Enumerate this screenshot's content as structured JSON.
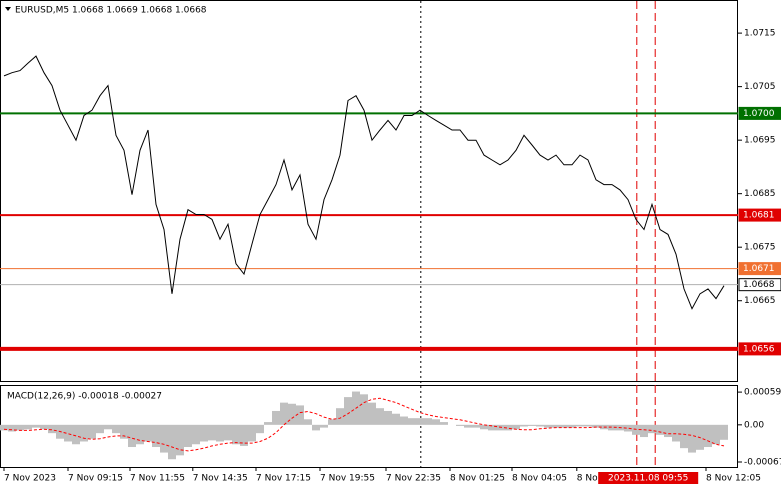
{
  "chart_data": [
    {
      "type": "line",
      "title": "EURUSD,M5 1.0668 1.0669 1.0668 1.0668",
      "color": "#000000",
      "xlim": [
        -0.5,
        91.75
      ],
      "ylim": [
        1.065,
        1.0721
      ],
      "yticks": [
        1.0715,
        1.0705,
        1.0695,
        1.0685,
        1.0675,
        1.0665
      ],
      "xticks": [
        {
          "value": 0,
          "label": "7 Nov 2023"
        },
        {
          "value": 8,
          "label": "7 Nov 09:15"
        },
        {
          "value": 15.75,
          "label": "7 Nov 11:55"
        },
        {
          "value": 23.6,
          "label": "7 Nov 14:35"
        },
        {
          "value": 31.5,
          "label": "7 Nov 17:15"
        },
        {
          "value": 39.5,
          "label": "7 Nov 19:55"
        },
        {
          "value": 47.75,
          "label": "7 Nov 22:35"
        },
        {
          "value": 55.75,
          "label": "8 Nov 01:25"
        },
        {
          "value": 63.5,
          "label": "8 Nov 04:05"
        },
        {
          "value": 71.6,
          "label": "8 No"
        },
        {
          "value": 87.75,
          "label": "8 Nov 12:05"
        }
      ],
      "levels": [
        {
          "value": 1.07,
          "label": "1.0700",
          "color": "#007000",
          "width": 2
        },
        {
          "value": 1.0681,
          "color": "#e00000",
          "width": 2
        },
        {
          "value": 1.0671,
          "color": "#f07030",
          "width": 1
        },
        {
          "value": 1.0668,
          "color": "#b0b0b0",
          "width": 1
        },
        {
          "value": 1.0656,
          "color": "#e00000",
          "width": 4
        }
      ],
      "vlines": [
        {
          "value": 52.1,
          "color": "#000000",
          "dash": "2,3"
        },
        {
          "value": 79.1,
          "color": "#e00000",
          "dash": "8,4"
        },
        {
          "value": 81.4,
          "color": "#e00000",
          "dash": "8,4"
        }
      ],
      "cursor_label": {
        "value": 81.4,
        "label": "2023.11.08 09:55"
      },
      "values": [
        1.0707,
        1.07076,
        1.0708,
        1.07094,
        1.07107,
        1.07076,
        1.07052,
        1.07006,
        1.06978,
        1.0695,
        1.06996,
        1.07006,
        1.07033,
        1.07052,
        1.06959,
        1.06931,
        1.06848,
        1.06931,
        1.06969,
        1.0683,
        1.06783,
        1.06663,
        1.06765,
        1.0682,
        1.06811,
        1.06811,
        1.06802,
        1.06765,
        1.06793,
        1.06719,
        1.067,
        1.06756,
        1.06811,
        1.06839,
        1.06867,
        1.06913,
        1.06857,
        1.06885,
        1.06793,
        1.06765,
        1.06839,
        1.06876,
        1.06922,
        1.07024,
        1.07033,
        1.07006,
        1.0695,
        1.06969,
        1.06987,
        1.06969,
        1.06996,
        1.06996,
        1.07006,
        1.06996,
        1.06987,
        1.06978,
        1.06969,
        1.06969,
        1.0695,
        1.0695,
        1.06922,
        1.06913,
        1.06904,
        1.06913,
        1.06931,
        1.06959,
        1.06941,
        1.06922,
        1.06913,
        1.06922,
        1.06904,
        1.06904,
        1.06922,
        1.06913,
        1.06876,
        1.06867,
        1.06867,
        1.06857,
        1.06839,
        1.06802,
        1.06783,
        1.0683,
        1.06783,
        1.06774,
        1.06737,
        1.06672,
        1.06635,
        1.06663,
        1.06672,
        1.06654,
        1.06678
      ]
    },
    {
      "type": "macd",
      "title": "MACD(12,26,9) -0.00018 -0.00027",
      "xlim": [
        -0.5,
        91.75
      ],
      "ylim": [
        -0.00076,
        0.0007
      ],
      "yticks": [
        0.00059,
        {
          "value": 0,
          "label": "0.00"
        },
        -0.00067
      ],
      "series": [
        {
          "kind": "bar",
          "color": "#c0c0c0",
          "values": [
            -0.0001,
            -0.00012,
            -0.0001,
            -8e-05,
            -5e-05,
            -8e-05,
            -0.00015,
            -0.00025,
            -0.0003,
            -0.00035,
            -0.0003,
            -0.00025,
            -0.00015,
            -8e-05,
            -0.00015,
            -0.00025,
            -0.0004,
            -0.00035,
            -0.0003,
            -0.0004,
            -0.0005,
            -0.00062,
            -0.00055,
            -0.0004,
            -0.00035,
            -0.0003,
            -0.00028,
            -0.0003,
            -0.00028,
            -0.00035,
            -0.00038,
            -0.0003,
            -0.00015,
            5e-05,
            0.00025,
            0.0004,
            0.00038,
            0.00035,
            0.0001,
            -0.0001,
            -5e-05,
            0.0001,
            0.0003,
            0.0005,
            0.0006,
            0.00055,
            0.0004,
            0.0003,
            0.00025,
            0.0002,
            0.00015,
            0.00012,
            0.00012,
            0.00012,
            0.0001,
            5e-05,
            0,
            -2e-05,
            -5e-05,
            -5e-05,
            -8e-05,
            -0.0001,
            -0.0001,
            -0.0001,
            -8e-05,
            -3e-05,
            -2e-05,
            -3e-05,
            -5e-05,
            -5e-05,
            -5e-05,
            -5e-05,
            -3e-05,
            -3e-05,
            -5e-05,
            -8e-05,
            -0.0001,
            -0.0001,
            -0.00012,
            -0.00018,
            -0.00022,
            -0.00015,
            -0.00018,
            -0.00022,
            -0.0003,
            -0.00042,
            -0.0005,
            -0.00045,
            -0.0004,
            -0.00035,
            -0.00027
          ]
        },
        {
          "kind": "line",
          "color": "#ff0000",
          "values": [
            -8e-05,
            -9e-05,
            -0.0001,
            -0.0001,
            -9e-05,
            -8e-05,
            -9e-05,
            -0.00012,
            -0.00016,
            -0.0002,
            -0.00024,
            -0.00026,
            -0.00025,
            -0.00022,
            -0.0002,
            -0.0002,
            -0.00024,
            -0.00028,
            -0.0003,
            -0.00032,
            -0.00035,
            -0.0004,
            -0.00045,
            -0.00047,
            -0.00045,
            -0.00042,
            -0.00038,
            -0.00035,
            -0.00033,
            -0.00032,
            -0.00033,
            -0.00033,
            -0.0003,
            -0.00024,
            -0.00014,
            0,
            0.00012,
            0.00022,
            0.00024,
            0.0002,
            0.00014,
            0.0001,
            0.00012,
            0.0002,
            0.0003,
            0.0004,
            0.00046,
            0.00048,
            0.00044,
            0.0004,
            0.00034,
            0.00028,
            0.00022,
            0.00018,
            0.00015,
            0.00013,
            0.00011,
            9e-05,
            6e-05,
            3e-05,
            0,
            -2e-05,
            -4e-05,
            -6e-05,
            -8e-05,
            -9e-05,
            -9e-05,
            -7e-05,
            -6e-05,
            -5e-05,
            -5e-05,
            -5e-05,
            -5e-05,
            -5e-05,
            -4e-05,
            -4e-05,
            -4e-05,
            -5e-05,
            -6e-05,
            -8e-05,
            -9e-05,
            -0.0001,
            -0.00013,
            -0.00016,
            -0.00016,
            -0.00017,
            -0.00019,
            -0.00023,
            -0.00029,
            -0.00035,
            -0.00038
          ]
        }
      ]
    }
  ]
}
